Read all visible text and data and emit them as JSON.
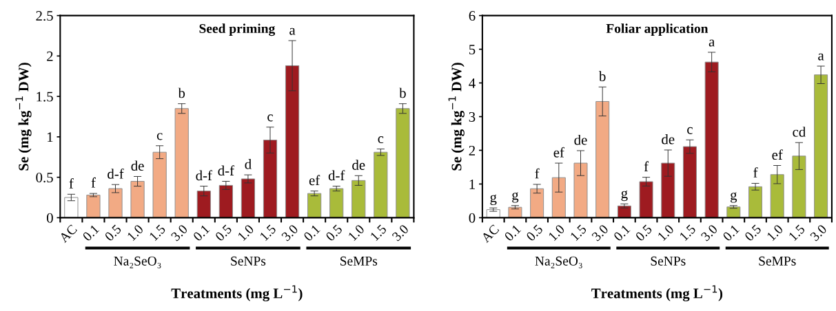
{
  "chart_data": [
    {
      "type": "bar",
      "title": "Seed priming",
      "xlabel": "Treatments (mg L$^{−1}$)",
      "ylabel": "Se (mg kg$^{−1}$ DW)",
      "categories": [
        "AC",
        "0.1",
        "0.5",
        "1.0",
        "1.5",
        "3.0",
        "0.1",
        "0.5",
        "1.0",
        "1.5",
        "3.0",
        "0.1",
        "0.5",
        "1.0",
        "1.5",
        "3.0"
      ],
      "values": [
        0.25,
        0.28,
        0.36,
        0.45,
        0.81,
        1.35,
        0.33,
        0.4,
        0.48,
        0.96,
        1.88,
        0.3,
        0.36,
        0.46,
        0.81,
        1.35
      ],
      "errors": [
        0.04,
        0.02,
        0.05,
        0.06,
        0.08,
        0.06,
        0.06,
        0.05,
        0.05,
        0.16,
        0.31,
        0.03,
        0.03,
        0.06,
        0.04,
        0.06
      ],
      "value_labels": [
        "f",
        "f",
        "d-f",
        "de",
        "c",
        "b",
        "d-f",
        "d-f",
        "d",
        "c",
        "a",
        "ef",
        "d-f",
        "de",
        "c",
        "b"
      ],
      "colors": [
        "#ffffff",
        "#f2aa84",
        "#f2aa84",
        "#f2aa84",
        "#f2aa84",
        "#f2aa84",
        "#9e1b20",
        "#9e1b20",
        "#9e1b20",
        "#9e1b20",
        "#9e1b20",
        "#a9bb3a",
        "#a9bb3a",
        "#a9bb3a",
        "#a9bb3a",
        "#a9bb3a"
      ],
      "annotations": [
        "Na₂SeO₃",
        "SeNPs",
        "SeMPs"
      ],
      "ylim": [
        0,
        2.5
      ],
      "yticks": [
        0,
        0.5,
        1,
        1.5,
        2,
        2.5
      ],
      "grid": false,
      "legend": false
    },
    {
      "type": "bar",
      "title": "Foliar application",
      "xlabel": "Treatments (mg L$^{−1}$)",
      "ylabel": "Se (mg kg$^{−1}$ DW)",
      "categories": [
        "AC",
        "0.1",
        "0.5",
        "1.0",
        "1.5",
        "3.0",
        "0.1",
        "0.5",
        "1.0",
        "1.5",
        "3.0",
        "0.1",
        "0.5",
        "1.0",
        "1.5",
        "3.0"
      ],
      "values": [
        0.24,
        0.31,
        0.86,
        1.19,
        1.62,
        3.45,
        0.35,
        1.07,
        1.62,
        2.11,
        4.62,
        0.32,
        0.92,
        1.28,
        1.83,
        4.24
      ],
      "errors": [
        0.05,
        0.05,
        0.13,
        0.43,
        0.37,
        0.43,
        0.06,
        0.13,
        0.39,
        0.2,
        0.29,
        0.04,
        0.1,
        0.27,
        0.4,
        0.26
      ],
      "value_labels": [
        "g",
        "g",
        "f",
        "ef",
        "de",
        "b",
        "g",
        "f",
        "de",
        "c",
        "a",
        "g",
        "f",
        "ef",
        "cd",
        "a"
      ],
      "colors": [
        "#ffffff",
        "#f2aa84",
        "#f2aa84",
        "#f2aa84",
        "#f2aa84",
        "#f2aa84",
        "#9e1b20",
        "#9e1b20",
        "#9e1b20",
        "#9e1b20",
        "#9e1b20",
        "#a9bb3a",
        "#a9bb3a",
        "#a9bb3a",
        "#a9bb3a",
        "#a9bb3a"
      ],
      "annotations": [
        "Na₂SeO₃",
        "SeNPs",
        "SeMPs"
      ],
      "ylim": [
        0,
        6
      ],
      "yticks": [
        0,
        1,
        2,
        3,
        4,
        5,
        6
      ],
      "grid": false,
      "legend": false
    }
  ]
}
